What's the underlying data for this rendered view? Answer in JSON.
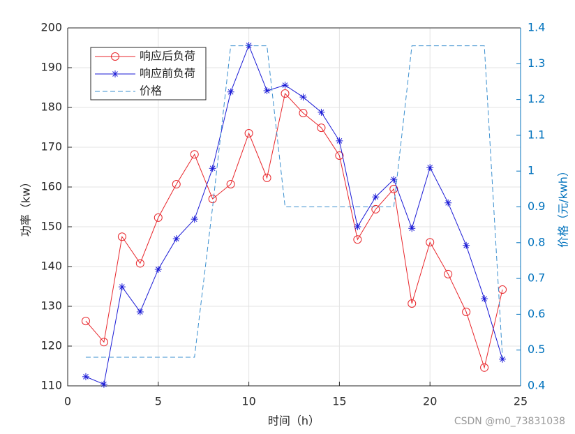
{
  "chart_data": {
    "type": "line",
    "x": [
      1,
      2,
      3,
      4,
      5,
      6,
      7,
      8,
      9,
      10,
      11,
      12,
      13,
      14,
      15,
      16,
      17,
      18,
      19,
      20,
      21,
      22,
      23,
      24
    ],
    "series": [
      {
        "name": "响应后负荷",
        "color": "#e8262b",
        "marker": "circle",
        "values": [
          126.3,
          121,
          147.5,
          140.8,
          152.3,
          160.7,
          168.2,
          157,
          160.7,
          173.5,
          162.3,
          183.5,
          178.6,
          174.9,
          167.9,
          146.8,
          154.4,
          159.5,
          130.7,
          146.1,
          138.1,
          128.6,
          114.6,
          134.2
        ]
      },
      {
        "name": "响应前负荷",
        "color": "#1a1ad6",
        "marker": "asterisk",
        "values": [
          112.3,
          110.4,
          134.9,
          128.6,
          139.3,
          147,
          151.9,
          164.7,
          183.9,
          195.6,
          184.2,
          185.6,
          182.6,
          178.8,
          171.6,
          150,
          157.5,
          161.9,
          149.6,
          164.9,
          156,
          145.3,
          131.9,
          116.7
        ]
      },
      {
        "name": "价格",
        "color": "#3a8fcf",
        "dash": true,
        "axis": "y2",
        "values": [
          0.48,
          0.48,
          0.48,
          0.48,
          0.48,
          0.48,
          0.48,
          0.9,
          1.35,
          1.35,
          1.35,
          0.9,
          0.9,
          0.9,
          0.9,
          0.9,
          0.9,
          0.9,
          1.35,
          1.35,
          1.35,
          1.35,
          1.35,
          0.48
        ]
      }
    ],
    "xlabel": "时间（h）",
    "ylabel": "功率（kw）",
    "y2label": "价格（元/kwh）",
    "xlim": [
      0,
      25
    ],
    "xticks": [
      0,
      5,
      10,
      15,
      20,
      25
    ],
    "ylim": [
      110,
      200
    ],
    "yticks": [
      110,
      120,
      130,
      140,
      150,
      160,
      170,
      180,
      190,
      200
    ],
    "y2lim": [
      0.4,
      1.4
    ],
    "y2ticks": [
      0.4,
      0.5,
      0.6,
      0.7,
      0.8,
      0.9,
      1,
      1.1,
      1.2,
      1.3,
      1.4
    ],
    "y2color": "#0072bd",
    "grid": true,
    "legend": "upper left",
    "watermark": "CSDN @m0_73831038"
  }
}
